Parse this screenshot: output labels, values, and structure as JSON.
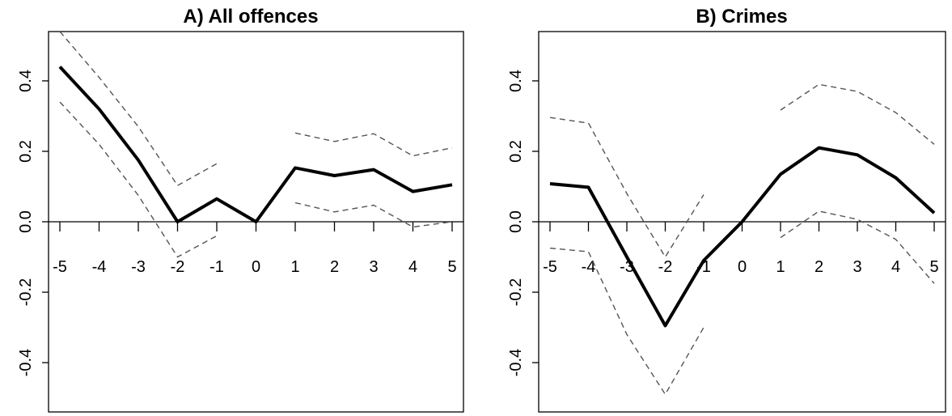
{
  "chart_data": [
    {
      "type": "line",
      "title": "A) All offences",
      "xlabel": "",
      "ylabel": "",
      "x": [
        -5,
        -4,
        -3,
        -2,
        -1,
        0,
        1,
        2,
        3,
        4,
        5
      ],
      "xlim": [
        -5,
        5
      ],
      "ylim": [
        -0.5,
        0.5
      ],
      "y_ticks": [
        "-0.4",
        "-0.2",
        "0.0",
        "0.2",
        "0.4"
      ],
      "x_ticks": [
        "-5",
        "-4",
        "-3",
        "-2",
        "-1",
        "0",
        "1",
        "2",
        "3",
        "4",
        "5"
      ],
      "grid": false,
      "series": [
        {
          "role": "estimate",
          "style": "solid-thick",
          "values": [
            0.44,
            0.32,
            0.175,
            0.0,
            0.065,
            0.0,
            0.153,
            0.131,
            0.148,
            0.086,
            0.105
          ]
        },
        {
          "role": "upper-bound",
          "style": "dashed",
          "values": [
            0.54,
            0.41,
            0.27,
            0.103,
            0.165,
            null,
            0.252,
            0.228,
            0.25,
            0.187,
            0.21
          ]
        },
        {
          "role": "lower-bound",
          "style": "dashed",
          "values": [
            0.34,
            0.22,
            0.075,
            -0.1,
            -0.04,
            null,
            0.054,
            0.028,
            0.047,
            -0.015,
            0.0
          ]
        }
      ]
    },
    {
      "type": "line",
      "title": "B) Crimes",
      "xlabel": "",
      "ylabel": "",
      "x": [
        -5,
        -4,
        -3,
        -2,
        -1,
        0,
        1,
        2,
        3,
        4,
        5
      ],
      "xlim": [
        -5,
        5
      ],
      "ylim": [
        -0.5,
        0.5
      ],
      "y_ticks": [
        "-0.4",
        "-0.2",
        "0.0",
        "0.2",
        "0.4"
      ],
      "x_ticks": [
        "-5",
        "-4",
        "-3",
        "-2",
        "-1",
        "0",
        "1",
        "2",
        "3",
        "4",
        "5"
      ],
      "grid": false,
      "series": [
        {
          "role": "estimate",
          "style": "solid-thick",
          "values": [
            0.108,
            0.098,
            -0.1,
            -0.295,
            -0.11,
            0.0,
            0.135,
            0.21,
            0.19,
            0.125,
            0.025
          ]
        },
        {
          "role": "upper-bound",
          "style": "dashed",
          "values": [
            0.296,
            0.28,
            0.08,
            -0.1,
            0.077,
            null,
            0.317,
            0.39,
            0.37,
            0.31,
            0.22
          ]
        },
        {
          "role": "lower-bound",
          "style": "dashed",
          "values": [
            -0.075,
            -0.085,
            -0.32,
            -0.49,
            -0.3,
            null,
            -0.045,
            0.03,
            0.007,
            -0.05,
            -0.175
          ]
        }
      ]
    }
  ]
}
